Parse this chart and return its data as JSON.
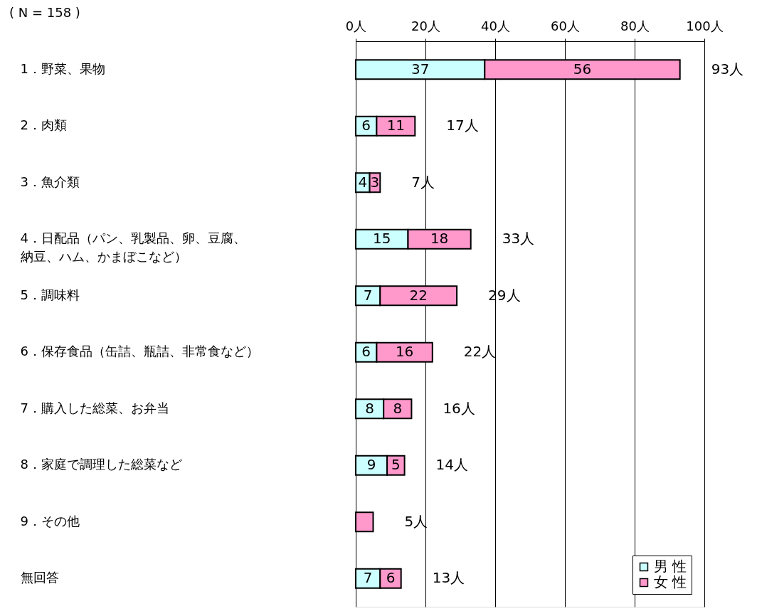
{
  "chart_data": {
    "type": "bar",
    "orientation": "horizontal",
    "stacked": true,
    "categories": [
      "1．野菜、果物",
      "2．肉類",
      "3．魚介類",
      "4．日配品（パン、乳製品、卵、豆腐、納豆、ハム、かまぼこなど）",
      "5．調味料",
      "6．保存食品（缶詰、瓶詰、非常食など）",
      "7．購入した総菜、お弁当",
      "8．家庭で調理した総菜など",
      "9．その他",
      "無回答"
    ],
    "series": [
      {
        "name": "男 性",
        "color": "#ccffff",
        "values": [
          37,
          6,
          4,
          15,
          7,
          6,
          8,
          9,
          null,
          7
        ],
        "value_labels": [
          "37",
          "6",
          "4",
          "15",
          "7",
          "6",
          "8",
          "9",
          null,
          "7"
        ]
      },
      {
        "name": "女 性",
        "color": "#ff99cc",
        "values": [
          56,
          11,
          3,
          18,
          22,
          16,
          8,
          5,
          5,
          6
        ],
        "value_labels": [
          "56",
          "11",
          "3",
          "18",
          "22",
          "16",
          "8",
          "5",
          null,
          "6"
        ]
      }
    ],
    "totals": [
      "93人",
      "17人",
      "7人",
      "33人",
      "29人",
      "22人",
      "16人",
      "14人",
      "5人",
      "13人"
    ],
    "xlim": [
      0,
      100
    ],
    "xticks": [
      {
        "value": 0,
        "label": "0人"
      },
      {
        "value": 20,
        "label": "20人"
      },
      {
        "value": 40,
        "label": "40人"
      },
      {
        "value": 60,
        "label": "60人"
      },
      {
        "value": 80,
        "label": "80人"
      },
      {
        "value": 100,
        "label": "100人"
      }
    ],
    "grid": "x",
    "legend": "bottom right",
    "annotations": [
      "( N = 158 )"
    ]
  }
}
